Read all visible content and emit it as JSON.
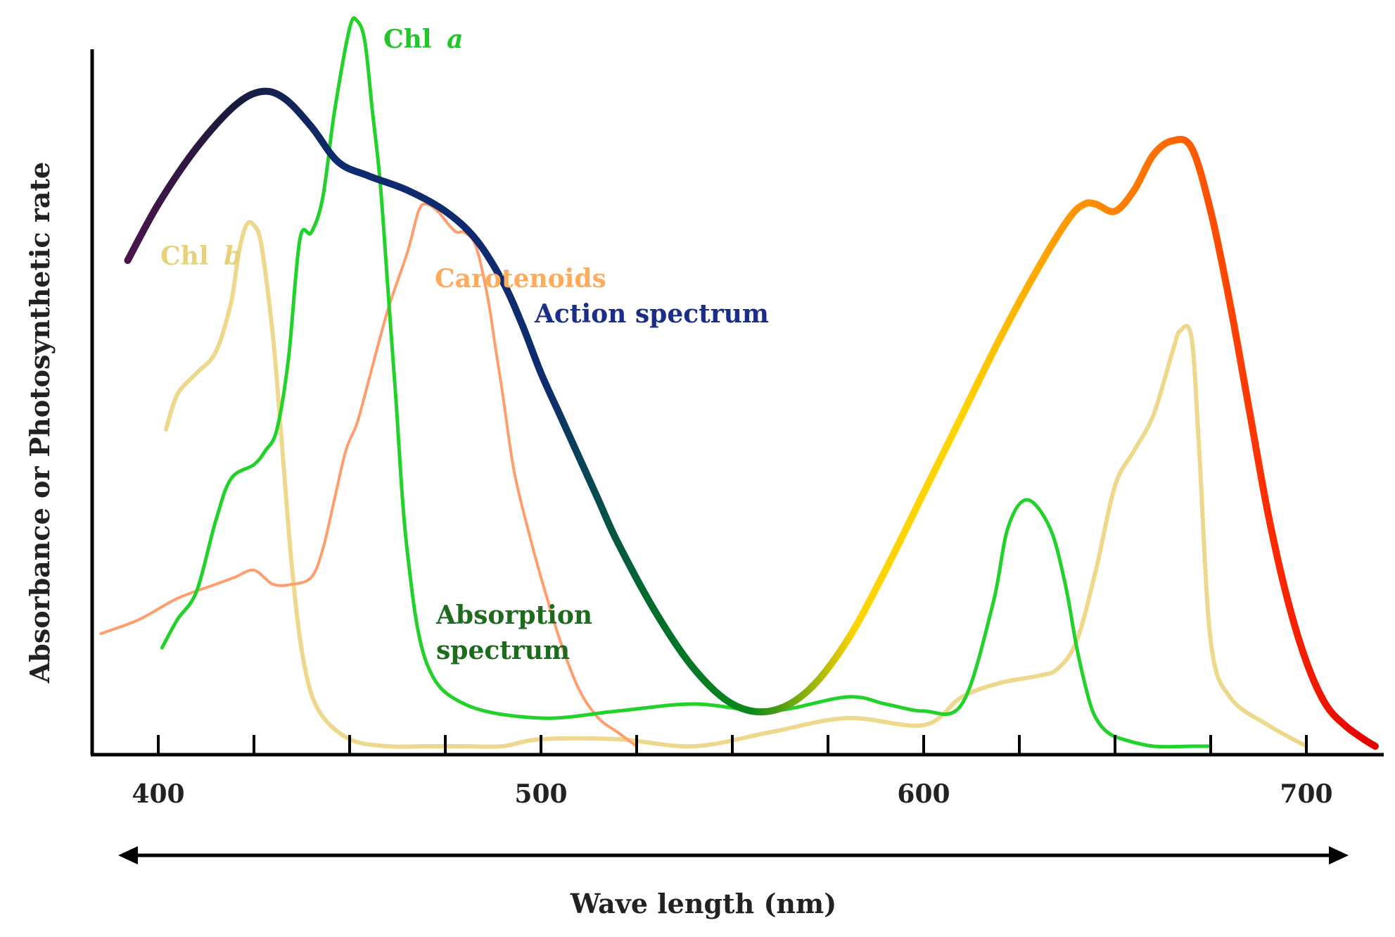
{
  "chart_data": {
    "type": "line",
    "title": "",
    "xlabel": "Wave length (nm)",
    "ylabel": "Absorbance or Photosynthetic rate",
    "xlim": [
      383,
      722
    ],
    "ylim": [
      0,
      100
    ],
    "xticks": [
      400,
      425,
      450,
      475,
      500,
      525,
      550,
      575,
      600,
      625,
      650,
      675,
      700
    ],
    "xtick_labels": [
      "400",
      "",
      "",
      "",
      "500",
      "",
      "",
      "",
      "600",
      "",
      "",
      "",
      "700"
    ],
    "grid": false,
    "series": [
      {
        "name": "Action spectrum",
        "label_text": "Action spectrum",
        "colors": [
          "#4a154b",
          "#1a1a3a",
          "#0d2b6e",
          "#0d2b6e",
          "#0d2b6e",
          "#006b2e",
          "#0a8a1a",
          "#ffd400",
          "#ffd400",
          "#ff9a00",
          "#ff6a00",
          "#ff2a00",
          "#e00000"
        ],
        "x": [
          392,
          400,
          410,
          420,
          427,
          433,
          440,
          447,
          455,
          465,
          475,
          483,
          490,
          495,
          500,
          505,
          510,
          515,
          520,
          530,
          540,
          550,
          560,
          570,
          580,
          590,
          600,
          610,
          620,
          630,
          638,
          642,
          645,
          650,
          655,
          660,
          665,
          670,
          675,
          680,
          685,
          690,
          695,
          700,
          705,
          710,
          715,
          718
        ],
        "y": [
          69,
          77,
          85,
          91,
          93,
          92,
          88,
          83,
          81,
          79,
          76,
          72,
          66,
          60,
          53,
          47,
          41,
          35,
          29,
          19,
          11,
          6,
          5,
          8,
          15,
          25,
          36,
          47,
          58,
          68,
          75,
          77,
          77,
          76,
          79,
          84,
          86,
          85,
          76,
          63,
          48,
          33,
          21,
          12,
          6,
          3,
          1,
          0
        ]
      },
      {
        "name": "Chl a",
        "label_text": "Chl a",
        "color": "#22d12a",
        "x": [
          401,
          405,
          410,
          415,
          419,
          425,
          428,
          431,
          434,
          437,
          440,
          443,
          446,
          450,
          452,
          454,
          456,
          458,
          460,
          462,
          465,
          470,
          480,
          500,
          520,
          540,
          560,
          580,
          590,
          600,
          610,
          618,
          622,
          627,
          633,
          637,
          640,
          643,
          645,
          648,
          652,
          660,
          670,
          675
        ],
        "y": [
          14,
          18,
          22,
          32,
          38,
          40,
          42,
          45,
          55,
          72,
          73,
          78,
          90,
          102,
          103,
          100,
          90,
          80,
          65,
          50,
          28,
          12,
          6,
          4,
          5,
          6,
          5,
          7,
          6,
          5,
          6,
          20,
          31,
          35,
          31,
          23,
          14,
          7,
          4,
          2,
          1,
          0,
          0,
          0
        ]
      },
      {
        "name": "Chl b",
        "label_text": "Chl b",
        "color": "#ebd47f",
        "x": [
          402,
          405,
          410,
          415,
          419,
          421,
          423,
          425,
          427,
          430,
          432,
          435,
          438,
          442,
          450,
          460,
          470,
          480,
          490,
          500,
          520,
          540,
          560,
          580,
          600,
          610,
          620,
          630,
          635,
          640,
          645,
          650,
          655,
          660,
          665,
          667,
          670,
          672,
          675,
          680,
          690,
          700
        ],
        "y": [
          45,
          50,
          53,
          56,
          63,
          70,
          74,
          74,
          71,
          58,
          45,
          25,
          12,
          5,
          1,
          0,
          0,
          0,
          0,
          1,
          1,
          0,
          2,
          4,
          3,
          7,
          9,
          10,
          11,
          15,
          25,
          37,
          42,
          47,
          56,
          59,
          58,
          42,
          15,
          7,
          3,
          0
        ]
      },
      {
        "name": "Carotenoids",
        "label_text": "Carotenoids",
        "color": "#ff9e6c",
        "x": [
          385,
          395,
          405,
          415,
          420,
          425,
          430,
          435,
          440,
          443,
          446,
          449,
          452,
          455,
          460,
          465,
          468,
          470,
          473,
          476,
          478,
          480,
          483,
          486,
          488,
          490,
          493,
          497,
          500,
          505,
          510,
          515,
          520,
          525
        ],
        "y": [
          16,
          18,
          21,
          23,
          24,
          25,
          23,
          23,
          24,
          28,
          35,
          42,
          46,
          52,
          62,
          70,
          76,
          77,
          76,
          74,
          73,
          73,
          71,
          64,
          57,
          50,
          39,
          30,
          24,
          15,
          8,
          4,
          2,
          0
        ]
      }
    ]
  },
  "annotations": {
    "chl_a_label": "Chl",
    "chl_a_letter": "a",
    "chl_b_label": "Chl",
    "chl_b_letter": "b",
    "carotenoids_label": "Carotenoids",
    "action_label": "Action spectrum",
    "absorption_line1": "Absorption",
    "absorption_line2": "spectrum"
  },
  "colors": {
    "axis": "#000000",
    "label_chl_a": "#22c62a",
    "label_chl_b": "#e6d27a",
    "label_carotenoids": "#ffab5e",
    "label_action": "#1a2d8a",
    "label_absorption": "#1d6b1d"
  }
}
